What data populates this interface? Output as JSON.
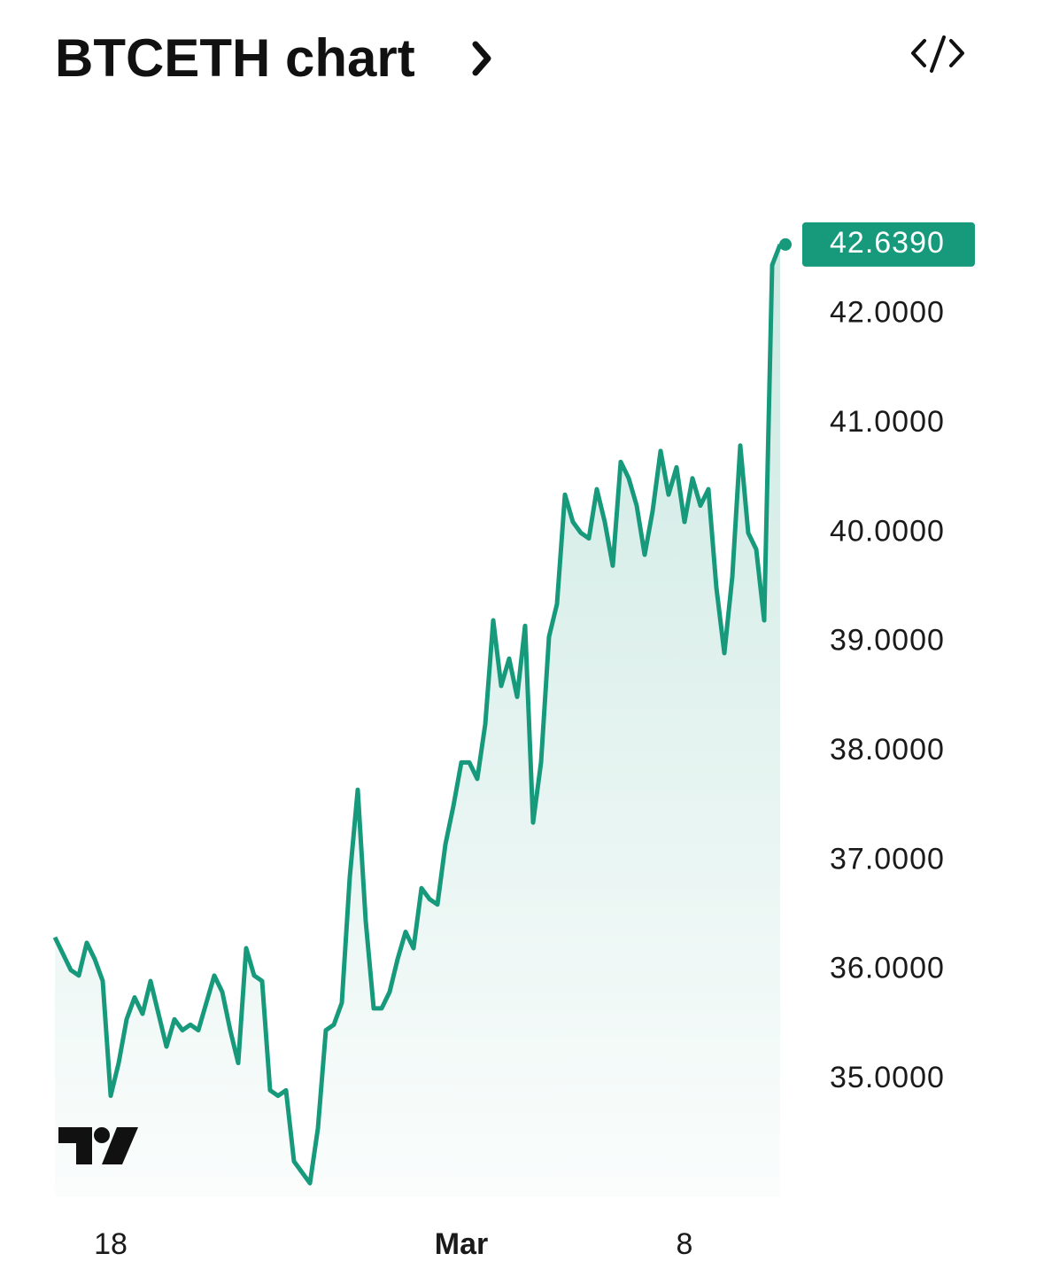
{
  "chart_data": {
    "type": "line",
    "title": "BTCETH chart",
    "categories": [
      null,
      null,
      null,
      null,
      null,
      null,
      null,
      "18",
      null,
      null,
      null,
      null,
      null,
      null,
      null,
      null,
      null,
      null,
      null,
      null,
      null,
      null,
      null,
      null,
      null,
      null,
      null,
      null,
      null,
      null,
      null,
      null,
      null,
      null,
      null,
      null,
      null,
      null,
      null,
      null,
      null,
      null,
      null,
      null,
      null,
      null,
      null,
      null,
      null,
      null,
      null,
      "Mar",
      null,
      null,
      null,
      null,
      null,
      null,
      null,
      null,
      null,
      null,
      null,
      null,
      null,
      null,
      null,
      null,
      null,
      null,
      null,
      null,
      null,
      null,
      null,
      null,
      null,
      null,
      null,
      "8",
      null,
      null,
      null,
      null,
      null,
      null,
      null,
      null,
      null,
      null,
      null,
      null
    ],
    "values": [
      36.3,
      36.15,
      36.0,
      35.95,
      36.25,
      36.1,
      35.9,
      34.85,
      35.15,
      35.55,
      35.75,
      35.6,
      35.9,
      35.6,
      35.3,
      35.55,
      35.45,
      35.5,
      35.45,
      35.7,
      35.95,
      35.8,
      35.45,
      35.15,
      36.2,
      35.95,
      35.9,
      34.9,
      34.85,
      34.9,
      34.25,
      34.15,
      34.05,
      34.55,
      35.45,
      35.5,
      35.7,
      36.85,
      37.65,
      36.45,
      35.65,
      35.65,
      35.8,
      36.1,
      36.35,
      36.2,
      36.75,
      36.65,
      36.6,
      37.15,
      37.5,
      37.9,
      37.9,
      37.75,
      38.25,
      39.2,
      38.6,
      38.85,
      38.5,
      39.15,
      37.35,
      37.9,
      39.05,
      39.35,
      40.35,
      40.1,
      40.0,
      39.95,
      40.4,
      40.1,
      39.7,
      40.65,
      40.5,
      40.25,
      39.8,
      40.2,
      40.75,
      40.35,
      40.6,
      40.1,
      40.5,
      40.25,
      40.4,
      39.5,
      38.9,
      39.6,
      40.8,
      40.0,
      39.85,
      39.2,
      42.45,
      42.639
    ],
    "last_price_label": "42.6390",
    "color": "#17997b",
    "ylim": [
      33.93,
      42.93
    ],
    "yticks": [
      {
        "value": 35,
        "label": "35.0000"
      },
      {
        "value": 36,
        "label": "36.0000"
      },
      {
        "value": 37,
        "label": "37.0000"
      },
      {
        "value": 38,
        "label": "38.0000"
      },
      {
        "value": 39,
        "label": "39.0000"
      },
      {
        "value": 40,
        "label": "40.0000"
      },
      {
        "value": 41,
        "label": "41.0000"
      },
      {
        "value": 42,
        "label": "42.0000"
      }
    ],
    "grid": false
  }
}
